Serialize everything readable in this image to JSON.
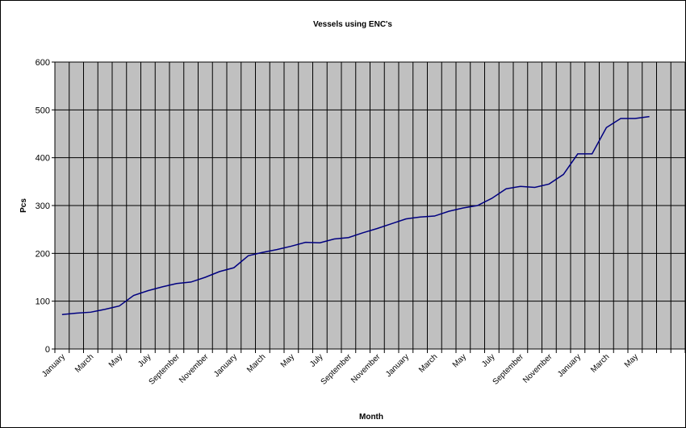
{
  "chart_data": {
    "type": "line",
    "title": "Vessels using ENC's",
    "x_label": "Month",
    "y_label": "Pcs",
    "categories": [
      "January",
      null,
      "March",
      null,
      "May",
      null,
      "July",
      null,
      "September",
      null,
      "November",
      null,
      "January",
      null,
      "March",
      null,
      "May",
      null,
      "July",
      null,
      "September",
      null,
      "November",
      null,
      "January",
      null,
      "March",
      null,
      "May",
      null,
      "July",
      null,
      "September",
      null,
      "November",
      null,
      "January",
      null,
      "March",
      null,
      "May",
      null,
      null,
      null
    ],
    "series": [
      {
        "name": "Vessels",
        "color": "#000080",
        "values": [
          72,
          75,
          77,
          83,
          90,
          112,
          122,
          130,
          137,
          140,
          150,
          162,
          170,
          195,
          202,
          208,
          215,
          223,
          222,
          230,
          233,
          243,
          252,
          262,
          272,
          276,
          278,
          288,
          295,
          300,
          315,
          335,
          340,
          338,
          345,
          365,
          408,
          408,
          463,
          482,
          482,
          486,
          null,
          null
        ]
      }
    ],
    "ylim": [
      0,
      600
    ],
    "yticks": [
      0,
      100,
      200,
      300,
      400,
      500,
      600
    ],
    "grid": true,
    "plot_background": "#c0c0c0"
  }
}
